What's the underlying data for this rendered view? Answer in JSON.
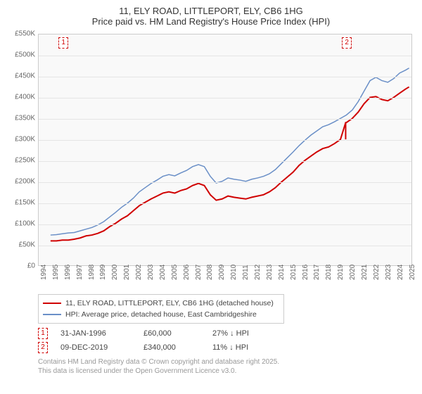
{
  "title": {
    "line1": "11, ELY ROAD, LITTLEPORT, ELY, CB6 1HG",
    "line2": "Price paid vs. HM Land Registry's House Price Index (HPI)"
  },
  "chart": {
    "type": "line",
    "background_color": "#f9f9f9",
    "grid_color": "#e5e5e5",
    "border_color": "#cccccc",
    "xlim": [
      1994,
      2025.5
    ],
    "ylim": [
      0,
      550
    ],
    "yticks": [
      0,
      50,
      100,
      150,
      200,
      250,
      300,
      350,
      400,
      450,
      500,
      550
    ],
    "ytick_labels": [
      "£0",
      "£50K",
      "£100K",
      "£150K",
      "£200K",
      "£250K",
      "£300K",
      "£350K",
      "£400K",
      "£450K",
      "£500K",
      "£550K"
    ],
    "xticks": [
      1994,
      1995,
      1996,
      1997,
      1998,
      1999,
      2000,
      2001,
      2002,
      2003,
      2004,
      2005,
      2006,
      2007,
      2008,
      2009,
      2010,
      2011,
      2012,
      2013,
      2014,
      2015,
      2016,
      2017,
      2018,
      2019,
      2020,
      2021,
      2022,
      2023,
      2024,
      2025
    ],
    "label_fontsize": 10,
    "label_color": "#666666",
    "series": {
      "price_paid": {
        "label": "11, ELY ROAD, LITTLEPORT, ELY, CB6 1HG (detached house)",
        "color": "#d00000",
        "line_width": 2,
        "data": [
          [
            1995,
            58
          ],
          [
            1995.5,
            58
          ],
          [
            1996,
            60
          ],
          [
            1996.5,
            60
          ],
          [
            1997,
            62
          ],
          [
            1997.5,
            65
          ],
          [
            1998,
            70
          ],
          [
            1998.5,
            72
          ],
          [
            1999,
            76
          ],
          [
            1999.5,
            82
          ],
          [
            2000,
            92
          ],
          [
            2000.5,
            100
          ],
          [
            2001,
            110
          ],
          [
            2001.5,
            118
          ],
          [
            2002,
            130
          ],
          [
            2002.5,
            142
          ],
          [
            2003,
            150
          ],
          [
            2003.5,
            158
          ],
          [
            2004,
            165
          ],
          [
            2004.5,
            172
          ],
          [
            2005,
            175
          ],
          [
            2005.5,
            172
          ],
          [
            2006,
            178
          ],
          [
            2006.5,
            182
          ],
          [
            2007,
            190
          ],
          [
            2007.5,
            195
          ],
          [
            2008,
            190
          ],
          [
            2008.5,
            168
          ],
          [
            2009,
            155
          ],
          [
            2009.5,
            158
          ],
          [
            2010,
            165
          ],
          [
            2010.5,
            162
          ],
          [
            2011,
            160
          ],
          [
            2011.5,
            158
          ],
          [
            2012,
            162
          ],
          [
            2012.5,
            165
          ],
          [
            2013,
            168
          ],
          [
            2013.5,
            175
          ],
          [
            2014,
            185
          ],
          [
            2014.5,
            198
          ],
          [
            2015,
            210
          ],
          [
            2015.5,
            222
          ],
          [
            2016,
            238
          ],
          [
            2016.5,
            250
          ],
          [
            2017,
            260
          ],
          [
            2017.5,
            270
          ],
          [
            2018,
            278
          ],
          [
            2018.5,
            282
          ],
          [
            2019,
            290
          ],
          [
            2019.5,
            300
          ],
          [
            2019.94,
            340
          ],
          [
            2020,
            340
          ],
          [
            2020.5,
            350
          ],
          [
            2021,
            365
          ],
          [
            2021.5,
            385
          ],
          [
            2022,
            400
          ],
          [
            2022.5,
            402
          ],
          [
            2023,
            395
          ],
          [
            2023.5,
            392
          ],
          [
            2024,
            400
          ],
          [
            2024.5,
            410
          ],
          [
            2025,
            420
          ],
          [
            2025.3,
            425
          ]
        ]
      },
      "hpi": {
        "label": "HPI: Average price, detached house, East Cambridgeshire",
        "color": "#6a8fc7",
        "line_width": 1.5,
        "data": [
          [
            1995,
            72
          ],
          [
            1995.5,
            73
          ],
          [
            1996,
            75
          ],
          [
            1996.5,
            77
          ],
          [
            1997,
            78
          ],
          [
            1997.5,
            82
          ],
          [
            1998,
            86
          ],
          [
            1998.5,
            90
          ],
          [
            1999,
            96
          ],
          [
            1999.5,
            104
          ],
          [
            2000,
            115
          ],
          [
            2000.5,
            126
          ],
          [
            2001,
            138
          ],
          [
            2001.5,
            148
          ],
          [
            2002,
            160
          ],
          [
            2002.5,
            175
          ],
          [
            2003,
            185
          ],
          [
            2003.5,
            195
          ],
          [
            2004,
            203
          ],
          [
            2004.5,
            212
          ],
          [
            2005,
            216
          ],
          [
            2005.5,
            213
          ],
          [
            2006,
            220
          ],
          [
            2006.5,
            226
          ],
          [
            2007,
            235
          ],
          [
            2007.5,
            240
          ],
          [
            2008,
            235
          ],
          [
            2008.5,
            212
          ],
          [
            2009,
            196
          ],
          [
            2009.5,
            200
          ],
          [
            2010,
            208
          ],
          [
            2010.5,
            205
          ],
          [
            2011,
            203
          ],
          [
            2011.5,
            200
          ],
          [
            2012,
            205
          ],
          [
            2012.5,
            208
          ],
          [
            2013,
            212
          ],
          [
            2013.5,
            218
          ],
          [
            2014,
            228
          ],
          [
            2014.5,
            242
          ],
          [
            2015,
            256
          ],
          [
            2015.5,
            270
          ],
          [
            2016,
            285
          ],
          [
            2016.5,
            298
          ],
          [
            2017,
            310
          ],
          [
            2017.5,
            320
          ],
          [
            2018,
            330
          ],
          [
            2018.5,
            335
          ],
          [
            2019,
            342
          ],
          [
            2019.5,
            350
          ],
          [
            2020,
            358
          ],
          [
            2020.5,
            370
          ],
          [
            2021,
            390
          ],
          [
            2021.5,
            415
          ],
          [
            2022,
            440
          ],
          [
            2022.5,
            448
          ],
          [
            2023,
            440
          ],
          [
            2023.5,
            436
          ],
          [
            2024,
            445
          ],
          [
            2024.5,
            458
          ],
          [
            2025,
            465
          ],
          [
            2025.3,
            470
          ]
        ]
      }
    },
    "markers": [
      {
        "id": "1",
        "x": 1996.08,
        "y": 60
      },
      {
        "id": "2",
        "x": 2019.94,
        "y": 340
      }
    ]
  },
  "legend": {
    "rows": [
      {
        "color": "#d00000",
        "width": 2,
        "label": "11, ELY ROAD, LITTLEPORT, ELY, CB6 1HG (detached house)"
      },
      {
        "color": "#6a8fc7",
        "width": 1.5,
        "label": "HPI: Average price, detached house, East Cambridgeshire"
      }
    ]
  },
  "events": [
    {
      "id": "1",
      "date": "31-JAN-1996",
      "price": "£60,000",
      "diff": "27% ↓ HPI"
    },
    {
      "id": "2",
      "date": "09-DEC-2019",
      "price": "£340,000",
      "diff": "11% ↓ HPI"
    }
  ],
  "footer": {
    "line1": "Contains HM Land Registry data © Crown copyright and database right 2025.",
    "line2": "This data is licensed under the Open Government Licence v3.0."
  }
}
